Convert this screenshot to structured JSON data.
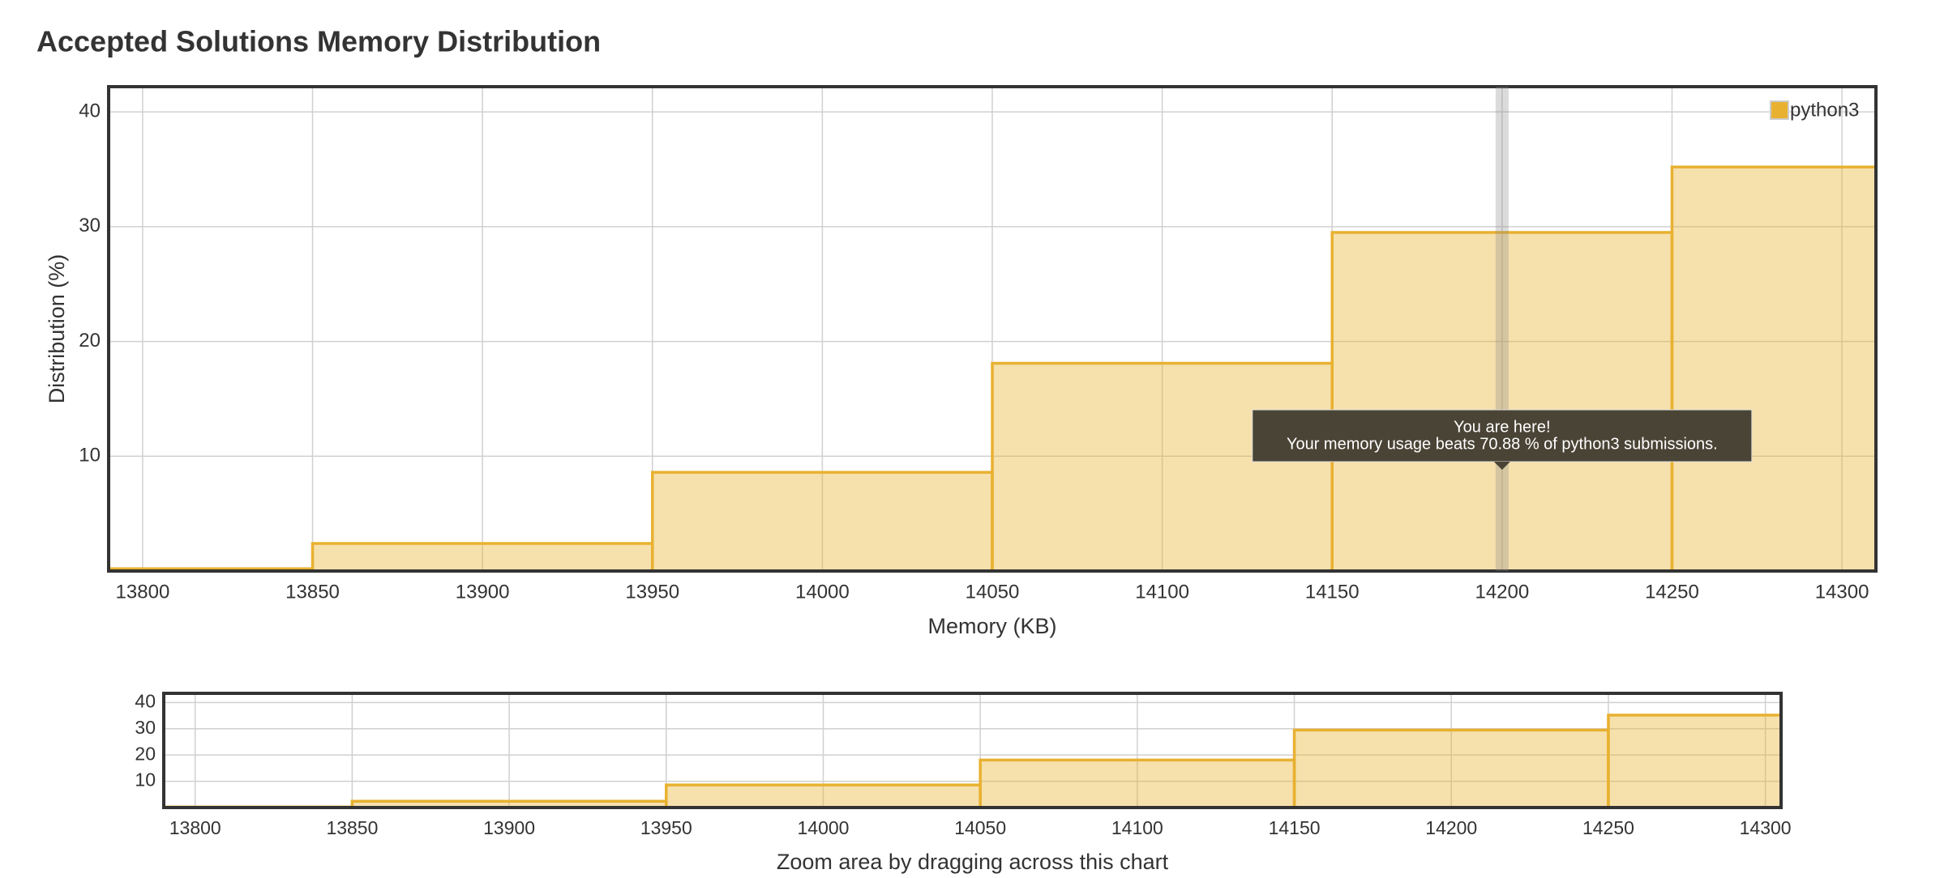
{
  "title": "Accepted Solutions Memory Distribution",
  "chart_data": [
    {
      "type": "histogram",
      "ylabel": "Distribution (%)",
      "xlabel": "Memory (KB)",
      "bins": [
        13750,
        13850,
        13950,
        14050,
        14150,
        14250,
        14350
      ],
      "series": [
        {
          "name": "python3",
          "color": "#e8b130",
          "values": [
            0.2,
            2.4,
            8.6,
            18.1,
            29.5,
            35.2
          ]
        }
      ],
      "xlim": [
        13790,
        14310
      ],
      "ylim": [
        0,
        42.2
      ],
      "xticks": [
        13800,
        13850,
        13900,
        13950,
        14000,
        14050,
        14100,
        14150,
        14200,
        14250,
        14300
      ],
      "yticks": [
        10,
        20,
        30,
        40
      ],
      "grid": true,
      "legend": "top-right",
      "marker": {
        "x": 14200,
        "title": "You are here!",
        "text": "Your memory usage beats 70.88 % of python3 submissions."
      }
    },
    {
      "type": "histogram",
      "caption": "Zoom area by dragging across this chart",
      "bins": [
        13750,
        13850,
        13950,
        14050,
        14150,
        14250,
        14350
      ],
      "series": [
        {
          "name": "python3",
          "color": "#e8b130",
          "values": [
            0.2,
            2.4,
            8.6,
            18.1,
            29.5,
            35.2
          ]
        }
      ],
      "xlim": [
        13790,
        14305
      ],
      "ylim": [
        0,
        43.5
      ],
      "xticks": [
        13800,
        13850,
        13900,
        13950,
        14000,
        14050,
        14100,
        14150,
        14200,
        14250,
        14300
      ],
      "yticks": [
        10,
        20,
        30,
        40
      ],
      "grid": true
    }
  ]
}
